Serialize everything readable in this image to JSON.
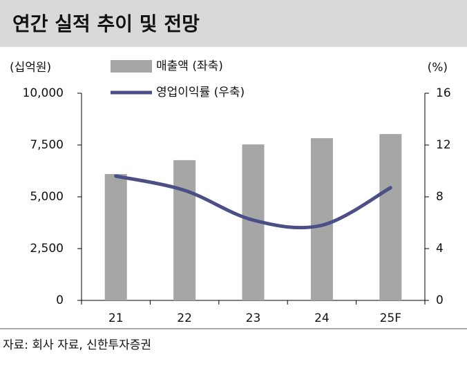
{
  "title": "연간 실적 추이 및 전망",
  "source": "자료: 회사 자료, 신한투자증권",
  "chart_data": {
    "type": "bar-line",
    "y_label": "(십억원)",
    "y2_label": "(%)",
    "categories": [
      "21",
      "22",
      "23",
      "24",
      "25F"
    ],
    "series": [
      {
        "name": "매출액 (좌축)",
        "type": "bar",
        "color": "#a6a6a6",
        "values": [
          6100,
          6770,
          7530,
          7830,
          8030
        ]
      },
      {
        "name": "영업이익률 (우축)",
        "type": "line",
        "axis": "y2",
        "color": "#4b4f86",
        "values": [
          9.6,
          8.5,
          6.2,
          5.8,
          8.7
        ]
      }
    ],
    "ylim": [
      0,
      10000
    ],
    "yticks": [
      0,
      {
        "value": 2500,
        "label": "2,500"
      },
      {
        "value": 5000,
        "label": "5,000"
      },
      {
        "value": 7500,
        "label": "7,500"
      },
      {
        "value": 10000,
        "label": "10,000"
      }
    ],
    "y2lim": [
      0,
      16
    ],
    "y2ticks": [
      0,
      4,
      8,
      12,
      16
    ]
  }
}
